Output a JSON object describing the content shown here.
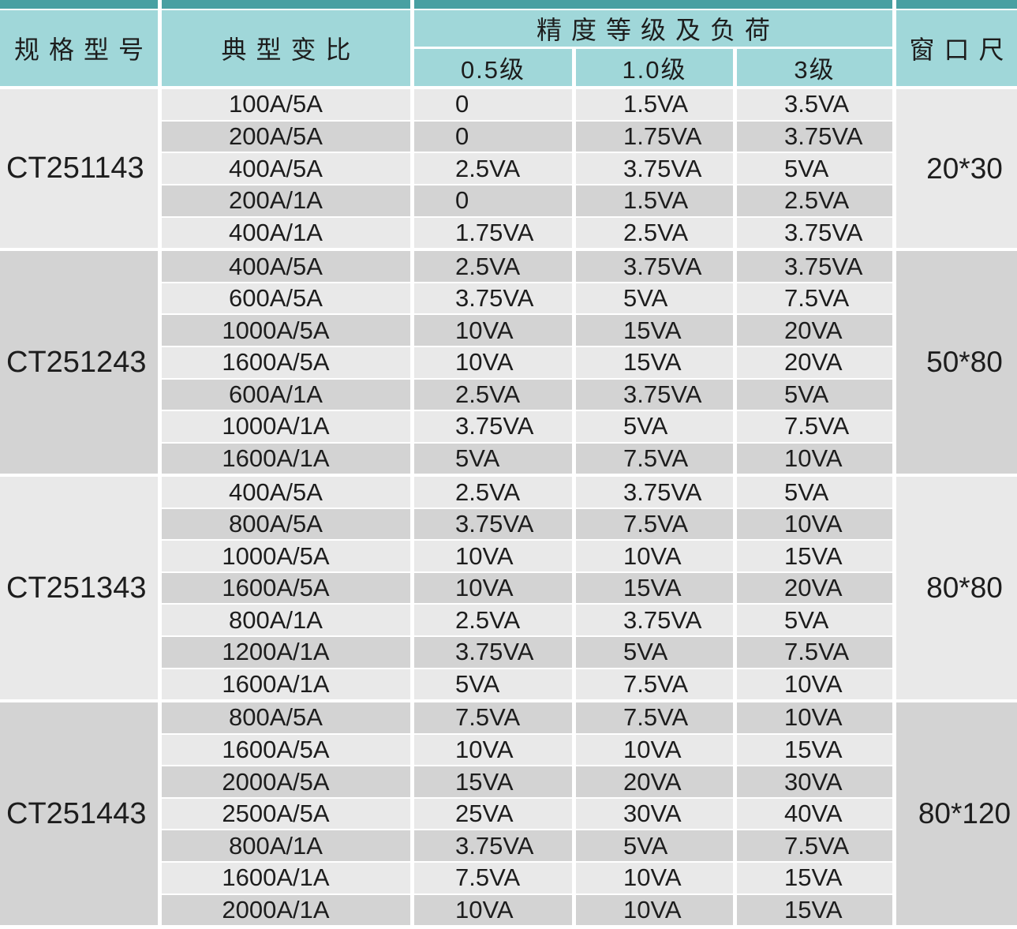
{
  "table": {
    "columns": {
      "model": "规格型号",
      "ratio": "典型变比",
      "accuracy_group": "精度等级及负荷",
      "accuracy_classes": [
        "0.5级",
        "1.0级",
        "3级"
      ],
      "window": "窗口尺"
    },
    "groups": [
      {
        "model": "CT251143",
        "window": "20*30",
        "rows": [
          {
            "ratio": "100A/5A",
            "va05": "0",
            "va10": "1.5VA",
            "va3": "3.5VA"
          },
          {
            "ratio": "200A/5A",
            "va05": "0",
            "va10": "1.75VA",
            "va3": "3.75VA"
          },
          {
            "ratio": "400A/5A",
            "va05": "2.5VA",
            "va10": "3.75VA",
            "va3": "5VA"
          },
          {
            "ratio": "200A/1A",
            "va05": "0",
            "va10": "1.5VA",
            "va3": "2.5VA"
          },
          {
            "ratio": "400A/1A",
            "va05": "1.75VA",
            "va10": "2.5VA",
            "va3": "3.75VA"
          }
        ]
      },
      {
        "model": "CT251243",
        "window": "50*80",
        "rows": [
          {
            "ratio": "400A/5A",
            "va05": "2.5VA",
            "va10": "3.75VA",
            "va3": "3.75VA"
          },
          {
            "ratio": "600A/5A",
            "va05": "3.75VA",
            "va10": "5VA",
            "va3": "7.5VA"
          },
          {
            "ratio": "1000A/5A",
            "va05": "10VA",
            "va10": "15VA",
            "va3": "20VA"
          },
          {
            "ratio": "1600A/5A",
            "va05": "10VA",
            "va10": "15VA",
            "va3": "20VA"
          },
          {
            "ratio": "600A/1A",
            "va05": "2.5VA",
            "va10": "3.75VA",
            "va3": "5VA"
          },
          {
            "ratio": "1000A/1A",
            "va05": "3.75VA",
            "va10": "5VA",
            "va3": "7.5VA"
          },
          {
            "ratio": "1600A/1A",
            "va05": "5VA",
            "va10": "7.5VA",
            "va3": "10VA"
          }
        ]
      },
      {
        "model": "CT251343",
        "window": "80*80",
        "rows": [
          {
            "ratio": "400A/5A",
            "va05": "2.5VA",
            "va10": "3.75VA",
            "va3": "5VA"
          },
          {
            "ratio": "800A/5A",
            "va05": "3.75VA",
            "va10": "7.5VA",
            "va3": "10VA"
          },
          {
            "ratio": "1000A/5A",
            "va05": "10VA",
            "va10": "10VA",
            "va3": "15VA"
          },
          {
            "ratio": "1600A/5A",
            "va05": "10VA",
            "va10": "15VA",
            "va3": "20VA"
          },
          {
            "ratio": "800A/1A",
            "va05": "2.5VA",
            "va10": "3.75VA",
            "va3": "5VA"
          },
          {
            "ratio": "1200A/1A",
            "va05": "3.75VA",
            "va10": "5VA",
            "va3": "7.5VA"
          },
          {
            "ratio": "1600A/1A",
            "va05": "5VA",
            "va10": "7.5VA",
            "va3": "10VA"
          }
        ]
      },
      {
        "model": "CT251443",
        "window": "80*120",
        "rows": [
          {
            "ratio": "800A/5A",
            "va05": "7.5VA",
            "va10": "7.5VA",
            "va3": "10VA"
          },
          {
            "ratio": "1600A/5A",
            "va05": "10VA",
            "va10": "10VA",
            "va3": "15VA"
          },
          {
            "ratio": "2000A/5A",
            "va05": "15VA",
            "va10": "20VA",
            "va3": "30VA"
          },
          {
            "ratio": "2500A/5A",
            "va05": "25VA",
            "va10": "30VA",
            "va3": "40VA"
          },
          {
            "ratio": "800A/1A",
            "va05": "3.75VA",
            "va10": "5VA",
            "va3": "7.5VA"
          },
          {
            "ratio": "1600A/1A",
            "va05": "7.5VA",
            "va10": "10VA",
            "va3": "15VA"
          },
          {
            "ratio": "2000A/1A",
            "va05": "10VA",
            "va10": "10VA",
            "va3": "15VA"
          }
        ]
      }
    ]
  },
  "colors": {
    "top_bar": "#48a0a2",
    "header_bg": "#a0d7d9",
    "row_light": "#e9e9e9",
    "row_dark": "#d3d3d3",
    "text": "#1d1d1d",
    "background": "#ffffff"
  }
}
